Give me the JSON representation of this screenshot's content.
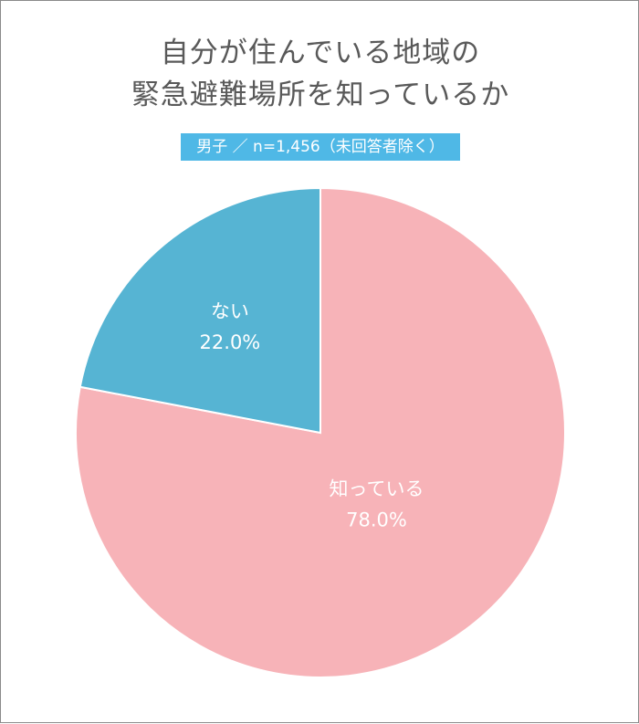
{
  "chart_data": {
    "type": "pie",
    "title_lines": [
      "自分が住んでいる地域の",
      "緊急避難場所を知っているか"
    ],
    "subtitle": "男子 ／ n=1,456（未回答者除く）",
    "slices": [
      {
        "label": "知っている",
        "value": 78.0,
        "value_text": "78.0%",
        "color": "#f7b3b8"
      },
      {
        "label": "ない",
        "value": 22.0,
        "value_text": "22.0%",
        "color": "#56b4d3"
      }
    ]
  }
}
